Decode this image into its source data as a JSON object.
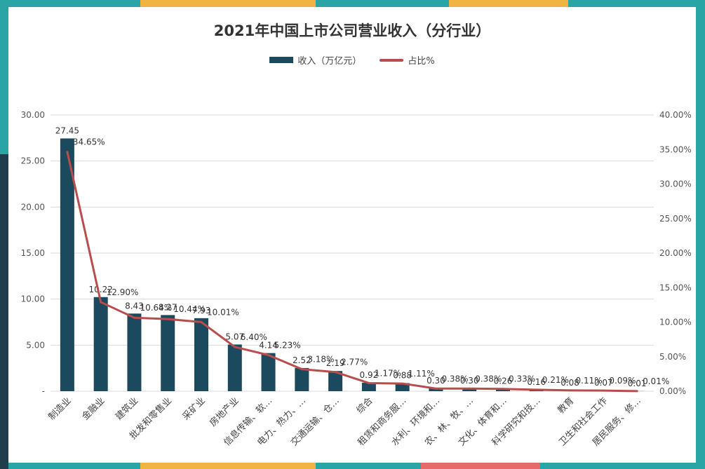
{
  "chart_data": {
    "type": "bar",
    "title": "2021年中国上市公司营业收入（分行业）",
    "legend_placement": "top",
    "grid": true,
    "categories": [
      "制造业",
      "金融业",
      "建筑业",
      "批发和零售业",
      "采矿业",
      "房地产业",
      "信息传输、软…",
      "电力、热力、…",
      "交通运输、仓…",
      "综合",
      "租赁和商务服…",
      "水利、环境和…",
      "农、林、牧、…",
      "文化、体育和…",
      "科学研究和技…",
      "教育",
      "卫生和社会工作",
      "居民服务、修…"
    ],
    "series": [
      {
        "name": "收入（万亿元）",
        "type": "bar",
        "axis": "left",
        "color": "#1b4a5e",
        "values": [
          27.45,
          10.22,
          8.43,
          8.27,
          7.93,
          5.07,
          4.14,
          2.52,
          2.19,
          0.92,
          0.88,
          0.3,
          0.3,
          0.26,
          0.16,
          0.08,
          0.07,
          0.01
        ],
        "labels": [
          "27.45",
          "10.22",
          "8.43",
          "8.27",
          "7.93",
          "5.07",
          "4.14",
          "2.52",
          "2.19",
          "0.92",
          "0.88",
          "0.30",
          "0.30",
          "0.26",
          "0.16",
          "0.08",
          "0.07",
          "0.01"
        ]
      },
      {
        "name": "占比%",
        "type": "line",
        "axis": "right",
        "color": "#b94c4c",
        "values": [
          34.65,
          12.9,
          10.64,
          10.44,
          10.01,
          6.4,
          5.23,
          3.18,
          2.77,
          1.17,
          1.11,
          0.38,
          0.38,
          0.33,
          0.21,
          0.11,
          0.09,
          0.01
        ],
        "labels": [
          "34.65%",
          "12.90%",
          "10.64%",
          "10.44%",
          "10.01%",
          "6.40%",
          "5.23%",
          "3.18%",
          "2.77%",
          "1.17%",
          "1.11%",
          "0.38%",
          "0.38%",
          "0.33%",
          "0.21%",
          "0.11%",
          "0.09%",
          "0.01%"
        ]
      }
    ],
    "y_left": {
      "min": 0,
      "max": 30,
      "ticks": [
        "-",
        "5.00",
        "10.00",
        "15.00",
        "20.00",
        "25.00",
        "30.00"
      ]
    },
    "y_right": {
      "min": 0,
      "max": 40,
      "ticks": [
        "0.00%",
        "5.00%",
        "10.00%",
        "15.00%",
        "20.00%",
        "25.00%",
        "30.00%",
        "35.00%",
        "40.00%"
      ]
    }
  }
}
